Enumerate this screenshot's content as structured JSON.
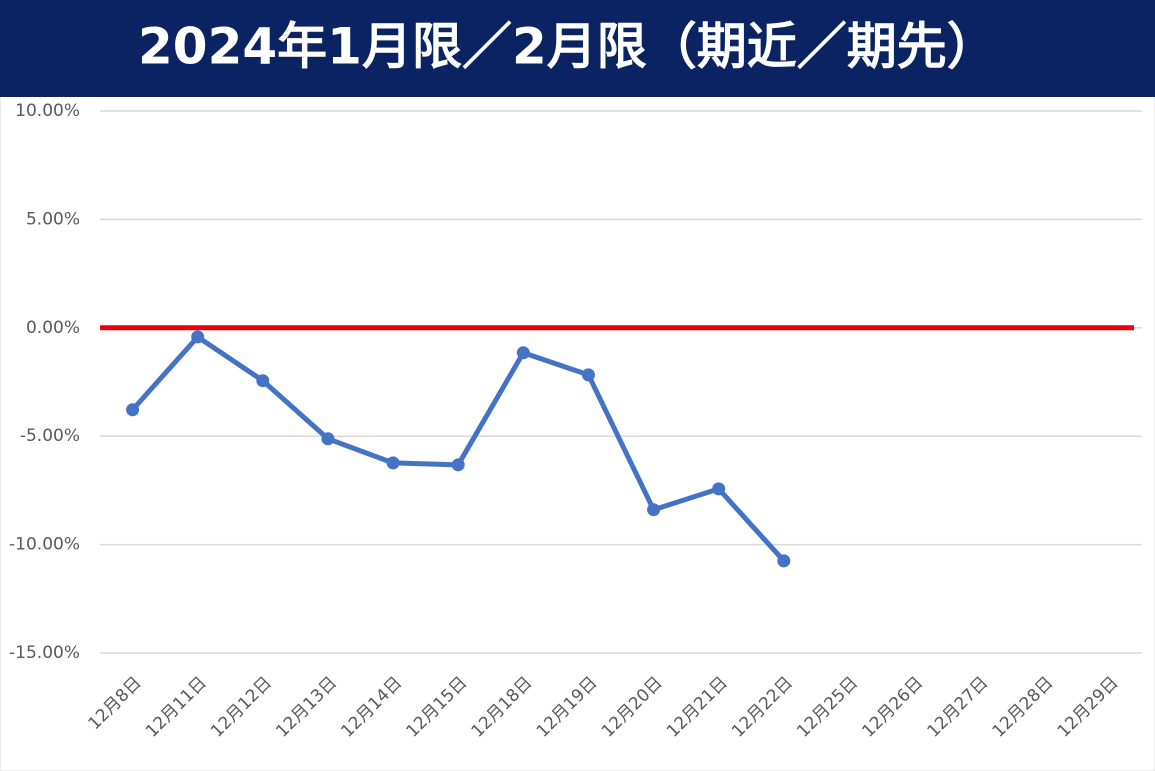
{
  "chart_data": {
    "type": "line",
    "title": "2024年1月限／2月限（期近／期先）",
    "categories": [
      "12月8日",
      "12月11日",
      "12月12日",
      "12月13日",
      "12月14日",
      "12月15日",
      "12月18日",
      "12月19日",
      "12月20日",
      "12月21日",
      "12月22日",
      "12月25日",
      "12月26日",
      "12月27日",
      "12月28日",
      "12月29日"
    ],
    "values": [
      -3.78,
      -0.42,
      -2.44,
      -5.12,
      -6.23,
      -6.32,
      -1.15,
      -2.17,
      -8.39,
      -7.43,
      -10.75,
      null,
      null,
      null,
      null,
      null
    ],
    "color": "#4472c4",
    "reference_line": {
      "value": 0,
      "color": "#e8000b"
    },
    "ylim": [
      -15,
      10
    ],
    "yticks": [
      {
        "value": -15,
        "label": "-15.00%"
      },
      {
        "value": -10,
        "label": "-10.00%"
      },
      {
        "value": -5,
        "label": "-5.00%"
      },
      {
        "value": 0,
        "label": "0.00%"
      },
      {
        "value": 5,
        "label": "5.00%"
      },
      {
        "value": 10,
        "label": "10.00%"
      }
    ],
    "grid": true
  }
}
